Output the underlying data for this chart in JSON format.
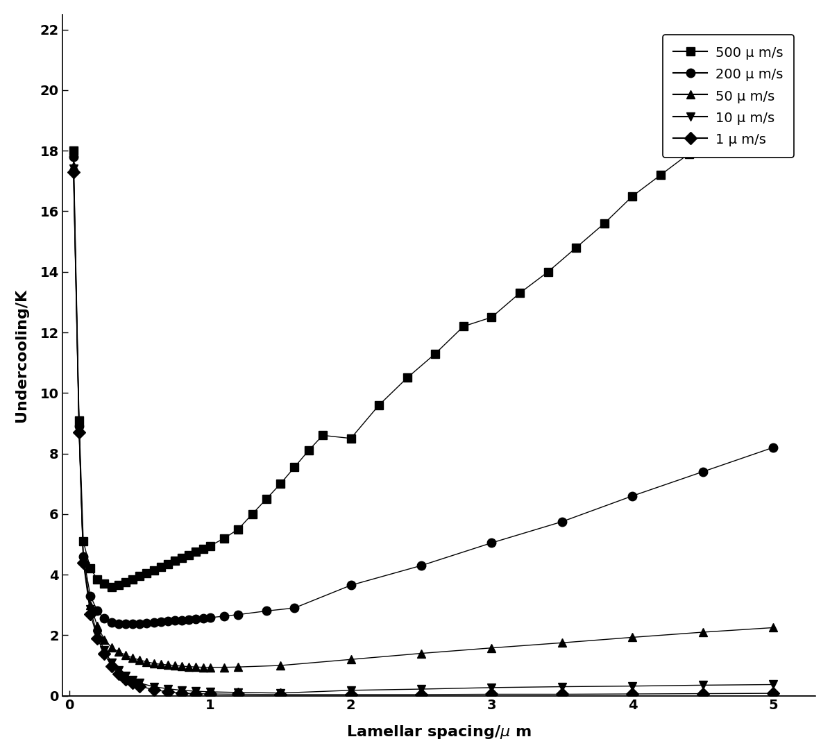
{
  "xlabel": "Lamellar spacing/μ m",
  "ylabel": "Undercooling/K",
  "xlim": [
    -0.05,
    5.3
  ],
  "ylim": [
    0,
    22.5
  ],
  "yticks": [
    0,
    2,
    4,
    6,
    8,
    10,
    12,
    14,
    16,
    18,
    20,
    22
  ],
  "xticks": [
    0,
    1,
    2,
    3,
    4,
    5
  ],
  "background_color": "#ffffff",
  "series": [
    {
      "label": "500 μ m/s",
      "marker": "s",
      "x": [
        0.03,
        0.07,
        0.1,
        0.15,
        0.2,
        0.25,
        0.3,
        0.35,
        0.4,
        0.45,
        0.5,
        0.55,
        0.6,
        0.65,
        0.7,
        0.75,
        0.8,
        0.85,
        0.9,
        0.95,
        1.0,
        1.1,
        1.2,
        1.3,
        1.4,
        1.5,
        1.6,
        1.7,
        1.8,
        2.0,
        2.2,
        2.4,
        2.6,
        2.8,
        3.0,
        3.2,
        3.4,
        3.6,
        3.8,
        4.0,
        4.2,
        4.4,
        4.6,
        4.8,
        5.0
      ],
      "y": [
        18.0,
        9.1,
        5.1,
        4.2,
        3.85,
        3.7,
        3.6,
        3.65,
        3.75,
        3.85,
        3.95,
        4.05,
        4.15,
        4.25,
        4.35,
        4.45,
        4.55,
        4.65,
        4.75,
        4.85,
        4.95,
        5.2,
        5.5,
        6.0,
        6.5,
        7.0,
        7.55,
        8.1,
        8.6,
        8.5,
        9.6,
        10.5,
        11.3,
        12.2,
        12.5,
        13.3,
        14.0,
        14.8,
        15.6,
        16.5,
        17.2,
        17.9,
        18.7,
        19.4,
        20.2
      ]
    },
    {
      "label": "200 μ m/s",
      "marker": "o",
      "x": [
        0.03,
        0.07,
        0.1,
        0.15,
        0.2,
        0.25,
        0.3,
        0.35,
        0.4,
        0.45,
        0.5,
        0.55,
        0.6,
        0.65,
        0.7,
        0.75,
        0.8,
        0.85,
        0.9,
        0.95,
        1.0,
        1.1,
        1.2,
        1.4,
        1.6,
        2.0,
        2.5,
        3.0,
        3.5,
        4.0,
        4.5,
        5.0
      ],
      "y": [
        17.8,
        8.9,
        4.6,
        3.3,
        2.8,
        2.55,
        2.42,
        2.38,
        2.38,
        2.38,
        2.38,
        2.4,
        2.42,
        2.44,
        2.46,
        2.48,
        2.5,
        2.52,
        2.54,
        2.56,
        2.58,
        2.63,
        2.68,
        2.8,
        2.9,
        3.65,
        4.3,
        5.05,
        5.75,
        6.6,
        7.4,
        8.2
      ]
    },
    {
      "label": "50 μ m/s",
      "marker": "^",
      "x": [
        0.03,
        0.07,
        0.1,
        0.15,
        0.2,
        0.25,
        0.3,
        0.35,
        0.4,
        0.45,
        0.5,
        0.55,
        0.6,
        0.65,
        0.7,
        0.75,
        0.8,
        0.85,
        0.9,
        0.95,
        1.0,
        1.1,
        1.2,
        1.5,
        2.0,
        2.5,
        3.0,
        3.5,
        4.0,
        4.5,
        5.0
      ],
      "y": [
        17.5,
        8.8,
        4.5,
        3.0,
        2.3,
        1.85,
        1.6,
        1.45,
        1.35,
        1.25,
        1.18,
        1.12,
        1.07,
        1.04,
        1.02,
        1.0,
        0.98,
        0.96,
        0.95,
        0.94,
        0.94,
        0.94,
        0.95,
        1.0,
        1.2,
        1.4,
        1.58,
        1.75,
        1.93,
        2.1,
        2.25
      ]
    },
    {
      "label": "10 μ m/s",
      "marker": "v",
      "x": [
        0.03,
        0.07,
        0.1,
        0.15,
        0.2,
        0.25,
        0.3,
        0.35,
        0.4,
        0.45,
        0.5,
        0.6,
        0.7,
        0.8,
        0.9,
        1.0,
        1.2,
        1.5,
        2.0,
        2.5,
        3.0,
        3.5,
        4.0,
        4.5,
        5.0
      ],
      "y": [
        17.4,
        8.8,
        4.45,
        2.85,
        2.0,
        1.5,
        1.1,
        0.83,
        0.65,
        0.52,
        0.42,
        0.3,
        0.23,
        0.18,
        0.15,
        0.13,
        0.11,
        0.09,
        0.18,
        0.22,
        0.27,
        0.3,
        0.32,
        0.35,
        0.37
      ]
    },
    {
      "label": "1 μ m/s",
      "marker": "D",
      "x": [
        0.03,
        0.07,
        0.1,
        0.15,
        0.2,
        0.25,
        0.3,
        0.35,
        0.4,
        0.45,
        0.5,
        0.6,
        0.7,
        0.8,
        0.9,
        1.0,
        1.2,
        1.5,
        2.0,
        2.5,
        3.0,
        3.5,
        4.0,
        4.5,
        5.0
      ],
      "y": [
        17.3,
        8.7,
        4.4,
        2.7,
        1.9,
        1.38,
        0.98,
        0.73,
        0.55,
        0.42,
        0.32,
        0.2,
        0.13,
        0.09,
        0.07,
        0.06,
        0.05,
        0.04,
        0.04,
        0.04,
        0.05,
        0.05,
        0.06,
        0.07,
        0.08
      ]
    }
  ]
}
